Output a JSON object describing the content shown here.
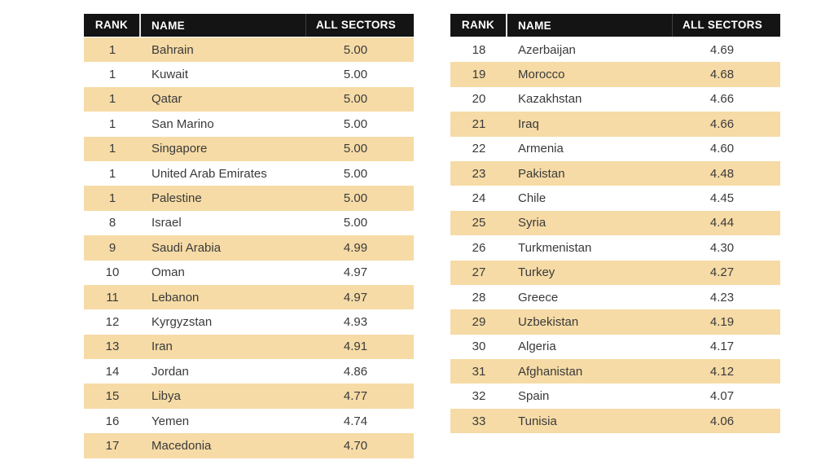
{
  "colors": {
    "header_bg": "#141414",
    "header_text": "#ffffff",
    "row_highlight": "#f6dba6",
    "row_plain": "#ffffff",
    "body_text": "#3a3a3a"
  },
  "tables": [
    {
      "headers": {
        "rank": "RANK",
        "name": "NAME",
        "score": "ALL SECTORS"
      },
      "rows": [
        {
          "rank": "1",
          "name": "Bahrain",
          "score": "5.00",
          "shaded": true
        },
        {
          "rank": "1",
          "name": "Kuwait",
          "score": "5.00",
          "shaded": false
        },
        {
          "rank": "1",
          "name": "Qatar",
          "score": "5.00",
          "shaded": true
        },
        {
          "rank": "1",
          "name": "San Marino",
          "score": "5.00",
          "shaded": false
        },
        {
          "rank": "1",
          "name": "Singapore",
          "score": "5.00",
          "shaded": true
        },
        {
          "rank": "1",
          "name": "United Arab Emirates",
          "score": "5.00",
          "shaded": false
        },
        {
          "rank": "1",
          "name": "Palestine",
          "score": "5.00",
          "shaded": true
        },
        {
          "rank": "8",
          "name": "Israel",
          "score": "5.00",
          "shaded": false
        },
        {
          "rank": "9",
          "name": "Saudi Arabia",
          "score": "4.99",
          "shaded": true
        },
        {
          "rank": "10",
          "name": "Oman",
          "score": "4.97",
          "shaded": false
        },
        {
          "rank": "11",
          "name": "Lebanon",
          "score": "4.97",
          "shaded": true
        },
        {
          "rank": "12",
          "name": "Kyrgyzstan",
          "score": "4.93",
          "shaded": false
        },
        {
          "rank": "13",
          "name": "Iran",
          "score": "4.91",
          "shaded": true
        },
        {
          "rank": "14",
          "name": "Jordan",
          "score": "4.86",
          "shaded": false
        },
        {
          "rank": "15",
          "name": "Libya",
          "score": "4.77",
          "shaded": true
        },
        {
          "rank": "16",
          "name": "Yemen",
          "score": "4.74",
          "shaded": false
        },
        {
          "rank": "17",
          "name": "Macedonia",
          "score": "4.70",
          "shaded": true
        }
      ]
    },
    {
      "headers": {
        "rank": "RANK",
        "name": "NAME",
        "score": "ALL SECTORS"
      },
      "rows": [
        {
          "rank": "18",
          "name": "Azerbaijan",
          "score": "4.69",
          "shaded": false
        },
        {
          "rank": "19",
          "name": "Morocco",
          "score": "4.68",
          "shaded": true
        },
        {
          "rank": "20",
          "name": "Kazakhstan",
          "score": "4.66",
          "shaded": false
        },
        {
          "rank": "21",
          "name": "Iraq",
          "score": "4.66",
          "shaded": true
        },
        {
          "rank": "22",
          "name": "Armenia",
          "score": "4.60",
          "shaded": false
        },
        {
          "rank": "23",
          "name": "Pakistan",
          "score": "4.48",
          "shaded": true
        },
        {
          "rank": "24",
          "name": "Chile",
          "score": "4.45",
          "shaded": false
        },
        {
          "rank": "25",
          "name": "Syria",
          "score": "4.44",
          "shaded": true
        },
        {
          "rank": "26",
          "name": "Turkmenistan",
          "score": "4.30",
          "shaded": false
        },
        {
          "rank": "27",
          "name": "Turkey",
          "score": "4.27",
          "shaded": true
        },
        {
          "rank": "28",
          "name": "Greece",
          "score": "4.23",
          "shaded": false
        },
        {
          "rank": "29",
          "name": "Uzbekistan",
          "score": "4.19",
          "shaded": true
        },
        {
          "rank": "30",
          "name": "Algeria",
          "score": "4.17",
          "shaded": false
        },
        {
          "rank": "31",
          "name": "Afghanistan",
          "score": "4.12",
          "shaded": true
        },
        {
          "rank": "32",
          "name": "Spain",
          "score": "4.07",
          "shaded": false
        },
        {
          "rank": "33",
          "name": "Tunisia",
          "score": "4.06",
          "shaded": true
        }
      ]
    }
  ]
}
